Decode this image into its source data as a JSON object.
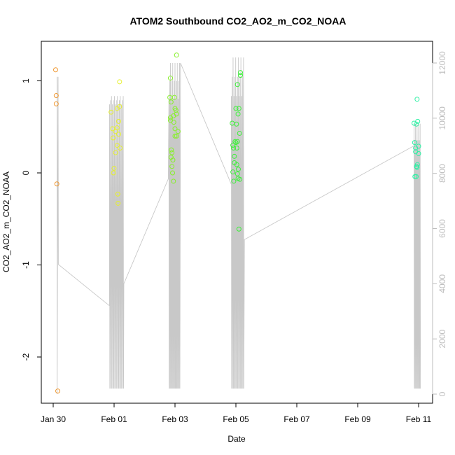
{
  "chart_data": {
    "type": "scatter",
    "title": "ATOM2 Southbound CO2_AO2_m_CO2_NOAA",
    "xlabel": "Date",
    "ylabel": "CO2_AO2_m_CO2_NOAA",
    "x_ticks": [
      "Jan 30",
      "Feb 01",
      "Feb 03",
      "Feb 05",
      "Feb 07",
      "Feb 09",
      "Feb 11"
    ],
    "x_tick_days": [
      0,
      2,
      4,
      6,
      8,
      10,
      12
    ],
    "xlim_days": [
      -0.15,
      12.3
    ],
    "y_ticks": [
      1,
      0,
      -1,
      -2
    ],
    "ylim": [
      -2.5,
      1.4
    ],
    "y2_ticks": [
      0,
      2000,
      4000,
      6000,
      8000,
      10000,
      12000
    ],
    "y2lim": [
      -250,
      12600
    ],
    "secondary_line_color": "#c8c8c8",
    "series": [
      {
        "color": "#f09a35",
        "points": [
          [
            0.08,
            1.12
          ],
          [
            0.1,
            0.84
          ],
          [
            0.1,
            0.75
          ],
          [
            0.12,
            -0.12
          ],
          [
            0.15,
            -2.37
          ]
        ]
      },
      {
        "color": "#e6f02e",
        "points": [
          [
            1.9,
            0.66
          ],
          [
            1.95,
            0.48
          ],
          [
            1.97,
            0.38
          ],
          [
            2.0,
            0.05
          ],
          [
            1.98,
            0.0
          ],
          [
            2.05,
            0.22
          ],
          [
            2.05,
            0.45
          ],
          [
            2.1,
            0.3
          ],
          [
            2.1,
            0.49
          ],
          [
            2.12,
            -0.23
          ],
          [
            2.15,
            0.56
          ],
          [
            2.15,
            0.42
          ],
          [
            2.18,
            0.72
          ],
          [
            2.2,
            0.27
          ],
          [
            2.13,
            -0.33
          ],
          [
            2.18,
            0.99
          ],
          [
            2.1,
            0.7
          ]
        ]
      },
      {
        "color": "#86f028",
        "points": [
          [
            3.83,
            0.82
          ],
          [
            3.85,
            0.6
          ],
          [
            3.85,
            0.57
          ],
          [
            3.88,
            0.25
          ],
          [
            3.87,
            0.17
          ],
          [
            3.9,
            0.22
          ],
          [
            3.9,
            0.07
          ],
          [
            3.92,
            0.0
          ],
          [
            3.95,
            -0.09
          ],
          [
            3.93,
            0.14
          ],
          [
            3.96,
            0.55
          ],
          [
            4.0,
            0.48
          ],
          [
            4.0,
            0.4
          ],
          [
            3.98,
            0.82
          ],
          [
            4.03,
            0.68
          ],
          [
            4.05,
            0.64
          ],
          [
            4.05,
            0.4
          ],
          [
            4.1,
            0.45
          ],
          [
            3.85,
            1.03
          ],
          [
            4.05,
            1.28
          ],
          [
            3.87,
            0.77
          ],
          [
            3.95,
            0.62
          ],
          [
            4.0,
            0.7
          ]
        ]
      },
      {
        "color": "#3df03a",
        "points": [
          [
            5.88,
            0.54
          ],
          [
            5.9,
            0.3
          ],
          [
            5.92,
            0.27
          ],
          [
            5.9,
            0.01
          ],
          [
            5.93,
            -0.09
          ],
          [
            5.95,
            0.11
          ],
          [
            5.95,
            0.18
          ],
          [
            5.97,
            0.34
          ],
          [
            6.0,
            0.7
          ],
          [
            6.02,
            0.53
          ],
          [
            6.03,
            0.27
          ],
          [
            6.05,
            0.34
          ],
          [
            6.05,
            -0.01
          ],
          [
            6.07,
            -0.06
          ],
          [
            6.08,
            0.04
          ],
          [
            6.1,
            0.7
          ],
          [
            6.12,
            0.43
          ],
          [
            6.13,
            -0.07
          ],
          [
            6.1,
            -0.61
          ],
          [
            6.15,
            1.06
          ],
          [
            6.15,
            1.09
          ],
          [
            6.05,
            0.96
          ],
          [
            6.07,
            0.64
          ],
          [
            6.0,
            0.33
          ],
          [
            6.03,
            0.09
          ]
        ]
      },
      {
        "color": "#2ef0a4",
        "points": [
          [
            11.85,
            0.54
          ],
          [
            11.87,
            0.33
          ],
          [
            11.9,
            0.27
          ],
          [
            11.9,
            0.23
          ],
          [
            11.93,
            0.53
          ],
          [
            11.95,
            0.8
          ],
          [
            11.97,
            0.56
          ],
          [
            11.93,
            0.07
          ],
          [
            11.96,
            0.09
          ],
          [
            11.88,
            -0.04
          ],
          [
            11.92,
            -0.04
          ],
          [
            11.95,
            0.06
          ],
          [
            12.0,
            0.29
          ],
          [
            12.0,
            0.21
          ]
        ]
      }
    ]
  }
}
